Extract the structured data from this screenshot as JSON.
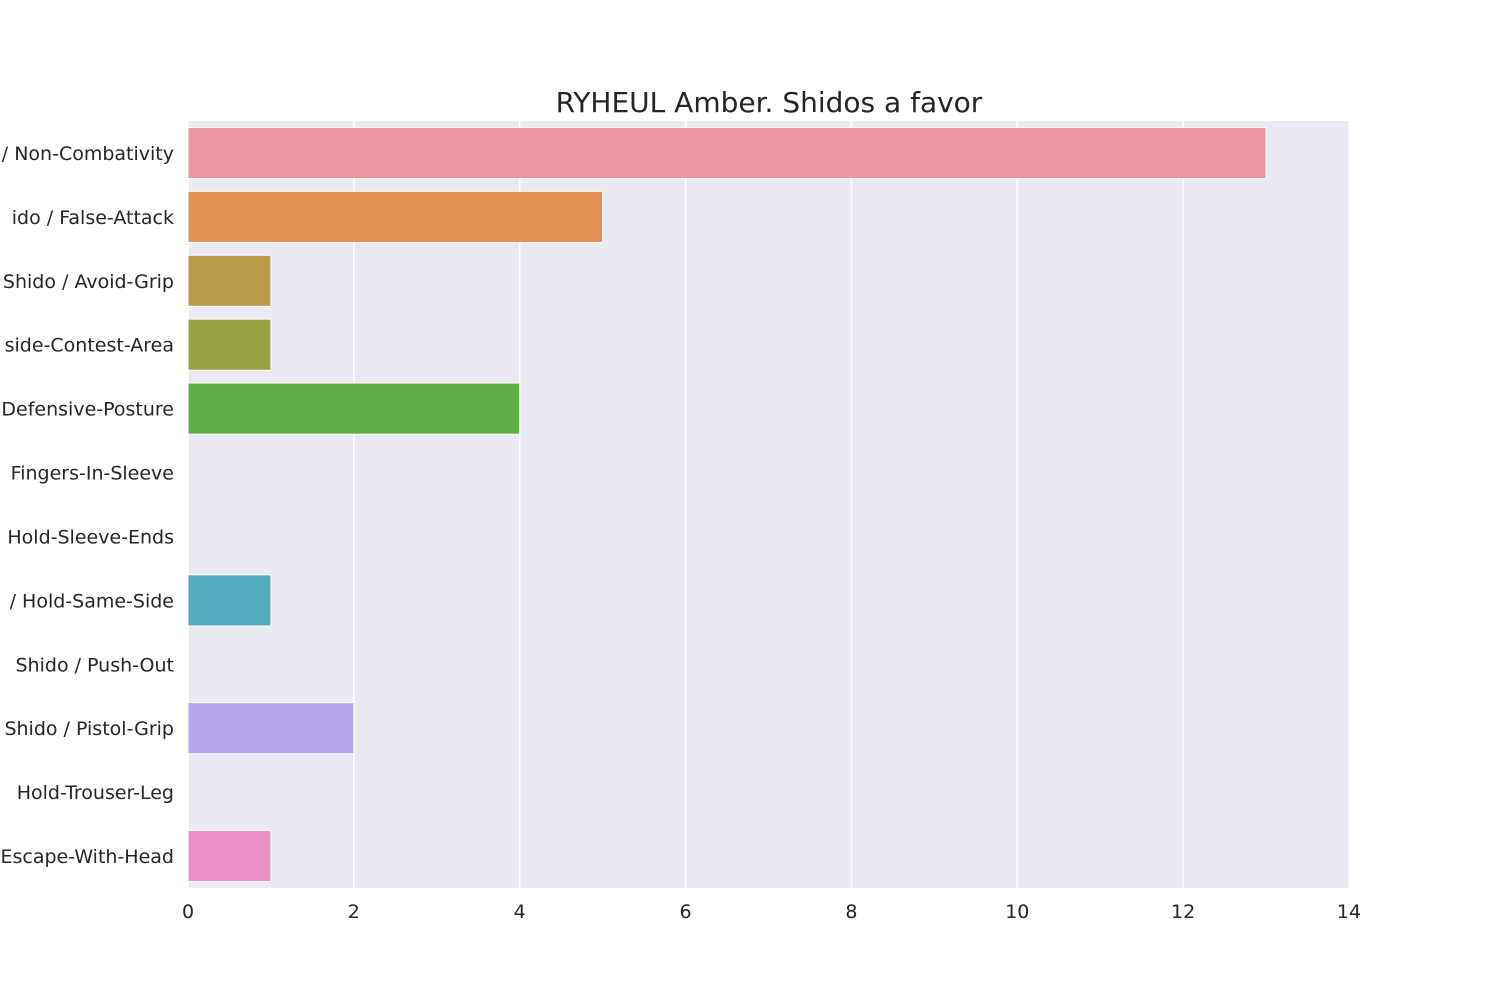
{
  "chart_data": {
    "type": "bar",
    "orientation": "horizontal",
    "title": "RYHEUL Amber. Shidos a favor",
    "xlabel": "",
    "ylabel": "",
    "categories": [
      "Shido / Non-Combativity",
      "Shido / False-Attack",
      "Shido / Avoid-Grip",
      "Shido / Outside-Contest-Area",
      "Shido / Defensive-Posture",
      "Shido / Fingers-In-Sleeve",
      "Shido / Hold-Sleeve-Ends",
      "Shido / Hold-Same-Side",
      "Shido / Push-Out",
      "Shido / Pistol-Grip",
      "Shido / Hold-Trouser-Leg",
      "Shido / Escape-With-Head"
    ],
    "category_labels_visible": [
      "/ Non-Combativity",
      "ido / False-Attack",
      "Shido / Avoid-Grip",
      "side-Contest-Area",
      "Defensive-Posture",
      "Fingers-In-Sleeve",
      "Hold-Sleeve-Ends",
      "/ Hold-Same-Side",
      "Shido / Push-Out",
      "Shido / Pistol-Grip",
      "Hold-Trouser-Leg",
      "Escape-With-Head"
    ],
    "values": [
      13,
      5,
      1,
      1,
      4,
      0,
      0,
      1,
      0,
      2,
      0,
      1
    ],
    "colors": [
      "#ea96a3",
      "#e19153",
      "#b89c49",
      "#99a244",
      "#5fae47",
      "#56ad74",
      "#5aaa95",
      "#53abbd",
      "#6ea8d6",
      "#b6a6ea",
      "#d994e6",
      "#ea8fc8"
    ],
    "xlim": [
      0,
      14
    ],
    "xticks": [
      0,
      2,
      4,
      6,
      8,
      10,
      12,
      14
    ],
    "grid": true,
    "legend": "none",
    "background": "#eaeaf2",
    "grid_color": "#ffffff"
  }
}
